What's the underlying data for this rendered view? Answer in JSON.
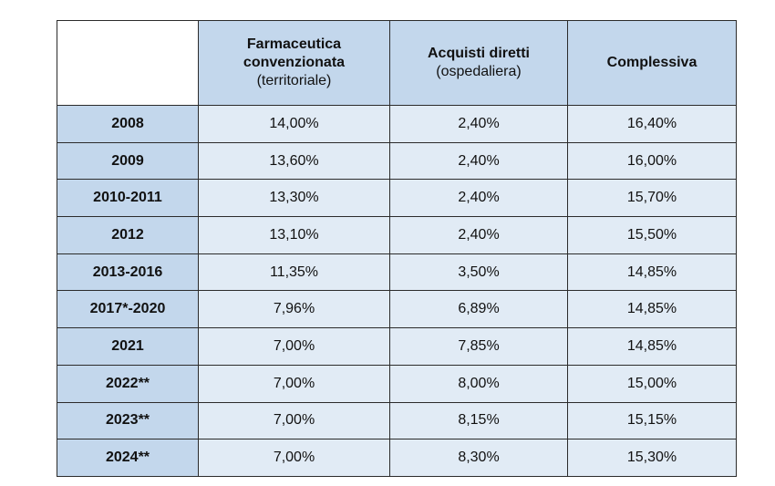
{
  "columns": [
    {
      "title_lines": [
        "Farmaceutica",
        "convenzionata"
      ],
      "subtitle": "(territoriale)"
    },
    {
      "title_lines": [
        "Acquisti diretti"
      ],
      "subtitle": "(ospedaliera)"
    },
    {
      "title_lines": [
        "Complessiva"
      ],
      "subtitle": ""
    }
  ],
  "rows": [
    {
      "period": "2008",
      "territoriale": "14,00%",
      "ospedaliera": "2,40%",
      "complessiva": "16,40%"
    },
    {
      "period": "2009",
      "territoriale": "13,60%",
      "ospedaliera": "2,40%",
      "complessiva": "16,00%"
    },
    {
      "period": "2010-2011",
      "territoriale": "13,30%",
      "ospedaliera": "2,40%",
      "complessiva": "15,70%"
    },
    {
      "period": "2012",
      "territoriale": "13,10%",
      "ospedaliera": "2,40%",
      "complessiva": "15,50%"
    },
    {
      "period": "2013-2016",
      "territoriale": "11,35%",
      "ospedaliera": "3,50%",
      "complessiva": "14,85%"
    },
    {
      "period": "2017*-2020",
      "territoriale": "7,96%",
      "ospedaliera": "6,89%",
      "complessiva": "14,85%"
    },
    {
      "period": "2021",
      "territoriale": "7,00%",
      "ospedaliera": "7,85%",
      "complessiva": "14,85%"
    },
    {
      "period": "2022**",
      "territoriale": "7,00%",
      "ospedaliera": "8,00%",
      "complessiva": "15,00%"
    },
    {
      "period": "2023**",
      "territoriale": "7,00%",
      "ospedaliera": "8,15%",
      "complessiva": "15,15%"
    },
    {
      "period": "2024**",
      "territoriale": "7,00%",
      "ospedaliera": "8,30%",
      "complessiva": "15,30%"
    }
  ],
  "colors": {
    "header_fill": "#c3d7ec",
    "cell_fill": "#e1ebf5",
    "border": "#2b2b2b"
  }
}
